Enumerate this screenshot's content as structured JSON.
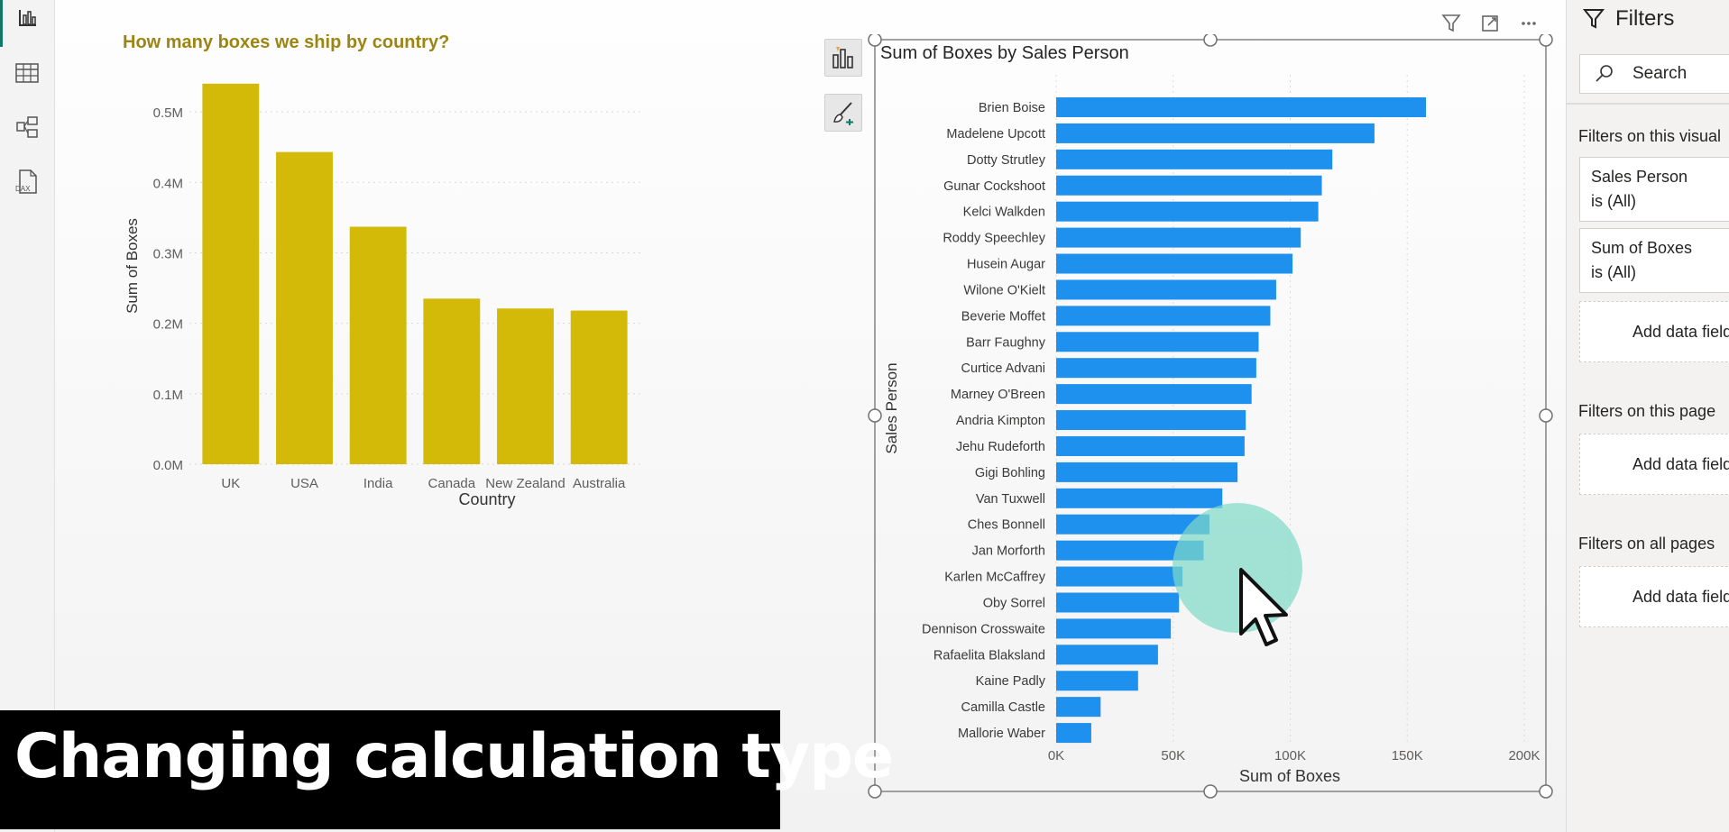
{
  "left_nav": {
    "icons": [
      "report-view-icon",
      "table-view-icon",
      "model-view-icon",
      "dax-query-view-icon"
    ],
    "dax_label": "DAX"
  },
  "colors": {
    "country_bar": "#D3BA09",
    "sales_bar": "#1E90EE",
    "title_country": "#9C8513",
    "cursor_halo": "#7FDAC8",
    "caption_bg": "#000000"
  },
  "visual_header": {
    "icons": [
      "filter-icon",
      "focus-mode-icon",
      "more-options-icon"
    ]
  },
  "charts": {
    "country": {
      "title": "How many boxes we ship by country?",
      "xlabel": "Country",
      "ylabel": "Sum of Boxes",
      "ticks": [
        "0.0M",
        "0.1M",
        "0.2M",
        "0.3M",
        "0.4M",
        "0.5M"
      ]
    },
    "sales": {
      "title": "Sum of Boxes by Sales Person",
      "xlabel": "Sum of Boxes",
      "ylabel": "Sales Person",
      "ticks": [
        "0K",
        "50K",
        "100K",
        "150K",
        "200K"
      ]
    }
  },
  "chart_data": [
    {
      "type": "bar",
      "title": "How many boxes we ship by country?",
      "xlabel": "Country",
      "ylabel": "Sum of Boxes",
      "categories": [
        "UK",
        "USA",
        "India",
        "Canada",
        "New Zealand",
        "Australia"
      ],
      "values": [
        540000,
        443000,
        337000,
        235000,
        221000,
        218000
      ],
      "ylim": [
        0,
        550000
      ],
      "grid": true
    },
    {
      "type": "bar",
      "orientation": "horizontal",
      "title": "Sum of Boxes by Sales Person",
      "xlabel": "Sum of Boxes",
      "ylabel": "Sales Person",
      "categories": [
        "Brien Boise",
        "Madelene Upcott",
        "Dotty Strutley",
        "Gunar Cockshoot",
        "Kelci Walkden",
        "Roddy Speechley",
        "Husein Augar",
        "Wilone O'Kielt",
        "Beverie Moffet",
        "Barr Faughny",
        "Curtice Advani",
        "Marney O'Breen",
        "Andria Kimpton",
        "Jehu Rudeforth",
        "Gigi Bohling",
        "Van Tuxwell",
        "Ches Bonnell",
        "Jan Morforth",
        "Karlen McCaffrey",
        "Oby Sorrel",
        "Dennison Crosswaite",
        "Rafaelita Blaksland",
        "Kaine Padly",
        "Camilla Castle",
        "Mallorie Waber"
      ],
      "values": [
        158000,
        136000,
        118000,
        113500,
        112000,
        104500,
        101000,
        94000,
        91500,
        86500,
        85500,
        83500,
        81000,
        80500,
        77500,
        71000,
        65500,
        63000,
        54000,
        52500,
        49000,
        43500,
        35000,
        19000,
        15000
      ],
      "xlim": [
        0,
        200000
      ],
      "grid": true
    }
  ],
  "filters": {
    "title": "Filters",
    "search_placeholder": "Search",
    "on_visual_label": "Filters on this visual",
    "cards": [
      {
        "field": "Sales Person",
        "state": "is (All)"
      },
      {
        "field": "Sum of Boxes",
        "state": "is (All)"
      }
    ],
    "add_field_label": "Add data fields here",
    "on_page_label": "Filters on this page",
    "on_all_label": "Filters on all pages"
  },
  "caption": "Changing calculation type"
}
